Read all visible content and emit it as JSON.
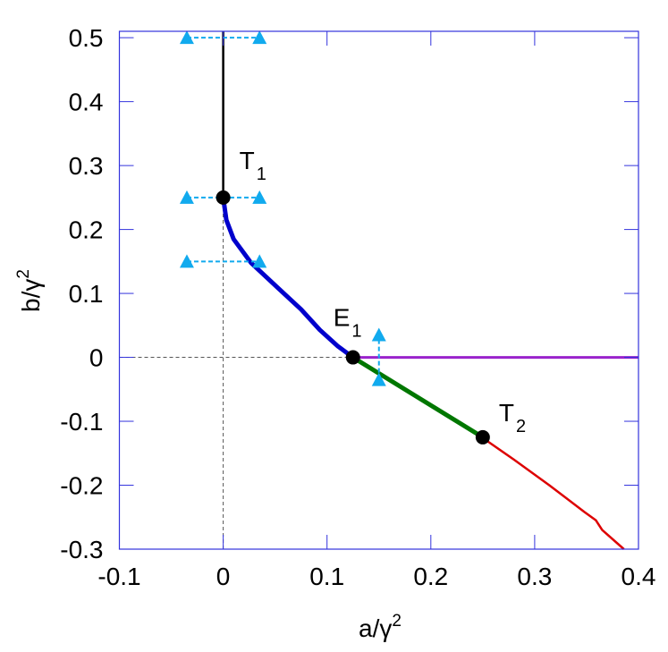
{
  "chart_data": {
    "type": "line",
    "xlabel": "a/γ",
    "xlabel_sup": "2",
    "ylabel": "b/γ",
    "ylabel_sup": "2",
    "xlim": [
      -0.1,
      0.4
    ],
    "ylim": [
      -0.3,
      0.51
    ],
    "xticks": [
      "-0.1",
      "0",
      "0.1",
      "0.2",
      "0.3",
      "0.4"
    ],
    "xtick_values": [
      -0.1,
      0,
      0.1,
      0.2,
      0.3,
      0.4
    ],
    "yticks": [
      "0.5",
      "0.4",
      "0.3",
      "0.2",
      "0.1",
      "0",
      "-0.1",
      "-0.2",
      "-0.3"
    ],
    "ytick_values": [
      0.5,
      0.4,
      0.3,
      0.2,
      0.1,
      0,
      -0.1,
      -0.2,
      -0.3
    ],
    "grid": false,
    "frame_color": "#3333dd",
    "series": [
      {
        "color": "#000000",
        "width": 2.5,
        "x": [
          0,
          0
        ],
        "y": [
          0.25,
          0.51
        ]
      },
      {
        "color": "#0000cc",
        "width": 5,
        "x": [
          0,
          0.003,
          0.01,
          0.0268,
          0.0524,
          0.075,
          0.093,
          0.11,
          0.125
        ],
        "y": [
          0.25,
          0.215,
          0.185,
          0.148,
          0.109,
          0.075,
          0.043,
          0.018,
          0
        ]
      },
      {
        "color": "#007700",
        "width": 5,
        "x": [
          0.125,
          0.25
        ],
        "y": [
          0,
          -0.125
        ]
      },
      {
        "color": "#9922cc",
        "width": 3,
        "x": [
          0.125,
          0.4
        ],
        "y": [
          0,
          0
        ]
      },
      {
        "color": "#dd0000",
        "width": 2.5,
        "x": [
          0.25,
          0.28,
          0.314,
          0.348,
          0.359,
          0.365,
          0.386
        ],
        "y": [
          -0.126,
          -0.16,
          -0.2,
          -0.242,
          -0.255,
          -0.27,
          -0.3
        ]
      }
    ],
    "reference_lines": [
      {
        "style": "dashed",
        "color": "#555555",
        "x": [
          0,
          0
        ],
        "y": [
          -0.3,
          0.25
        ]
      },
      {
        "style": "dashed",
        "color": "#555555",
        "x": [
          -0.1,
          0.125
        ],
        "y": [
          0,
          0
        ]
      }
    ],
    "arrows": [
      {
        "color": "#11aaee",
        "x": [
          -0.035,
          0.035
        ],
        "y": [
          0.5,
          0.5
        ]
      },
      {
        "color": "#11aaee",
        "x": [
          -0.035,
          0.035
        ],
        "y": [
          0.25,
          0.25
        ]
      },
      {
        "color": "#11aaee",
        "x": [
          -0.035,
          0.035
        ],
        "y": [
          0.15,
          0.15
        ]
      },
      {
        "color": "#11aaee",
        "x": [
          0.15,
          0.15
        ],
        "y": [
          -0.035,
          0.035
        ]
      }
    ],
    "points": [
      {
        "label": "T",
        "sub": "1",
        "x": 0,
        "y": 0.25
      },
      {
        "label": "E",
        "sub": "1",
        "x": 0.125,
        "y": 0
      },
      {
        "label": "T",
        "sub": "2",
        "x": 0.25,
        "y": -0.125
      }
    ]
  }
}
